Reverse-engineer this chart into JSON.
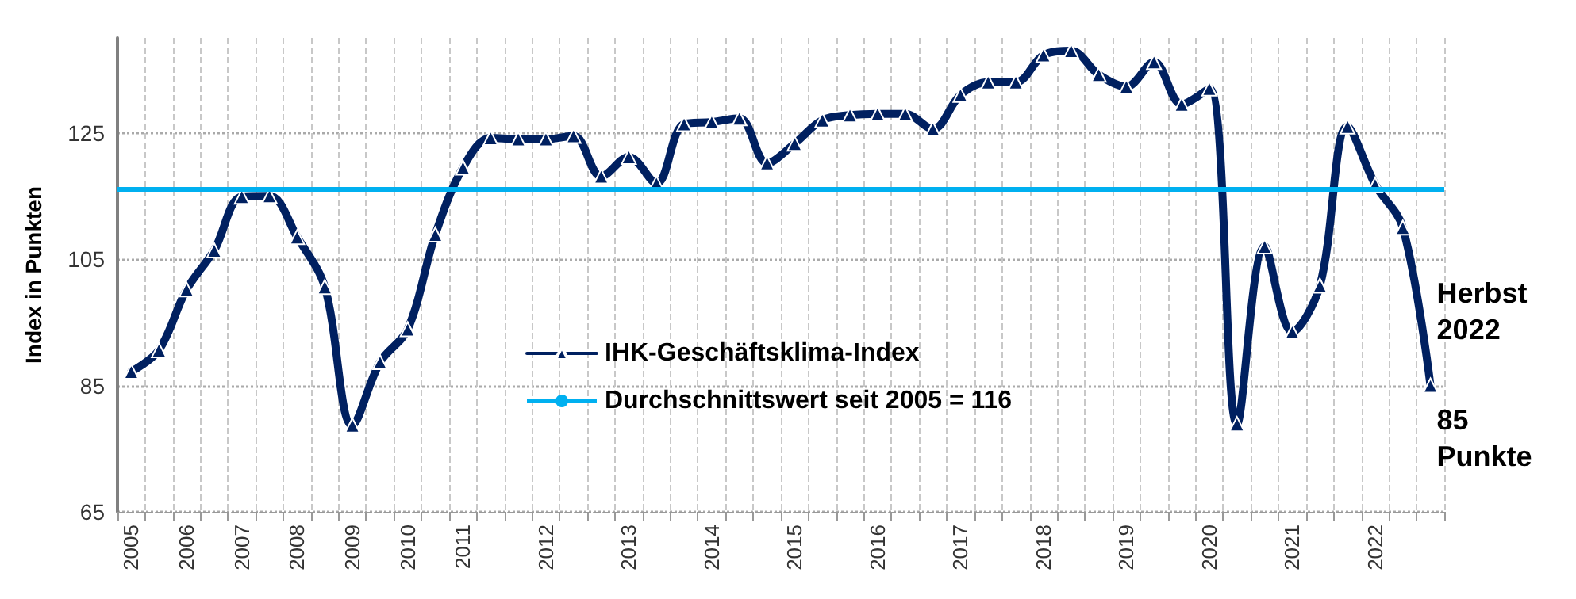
{
  "chart_data": {
    "type": "line",
    "ylabel": "Index in Punkten",
    "categories": [
      "2005",
      null,
      "2006",
      null,
      "2007",
      null,
      "2008",
      null,
      "2009",
      null,
      "2010",
      null,
      "2011",
      null,
      null,
      "2012",
      null,
      null,
      "2013",
      null,
      null,
      "2014",
      null,
      null,
      "2015",
      null,
      null,
      "2016",
      null,
      null,
      "2017",
      null,
      null,
      "2018",
      null,
      null,
      "2019",
      null,
      null,
      "2020",
      null,
      null,
      "2021",
      null,
      null,
      "2022",
      null,
      null
    ],
    "series": [
      {
        "name": "IHK-Geschäftsklima-Index",
        "color": "#002060",
        "values": [
          87.2,
          90.6,
          100.2,
          106.4,
          114.9,
          115,
          108.5,
          100.6,
          78.7,
          88.7,
          93.9,
          108.9,
          119.5,
          124.2,
          124,
          124,
          124.5,
          118.1,
          121.2,
          117,
          126.4,
          126.7,
          127.3,
          120.2,
          123.3,
          127,
          127.8,
          128,
          128,
          125.6,
          131,
          133,
          133,
          137.3,
          138,
          134.2,
          132.3,
          136.2,
          129.5,
          132,
          78.9,
          107,
          93.5,
          100.8,
          126,
          116.8,
          110,
          85
        ]
      }
    ],
    "ref_lines": [
      {
        "axis": "y",
        "value": 116,
        "label": "Durchschnittswert seit 2005 = 116",
        "color": "#00b0f0"
      }
    ],
    "annotations": [
      "Herbst\n2022",
      "85\nPunkte"
    ],
    "ylim": [
      65,
      140
    ],
    "yticks": [
      65,
      85,
      105,
      125
    ],
    "grid": true,
    "legend": "bottom",
    "marker": "triangle",
    "line_style": "solid"
  }
}
